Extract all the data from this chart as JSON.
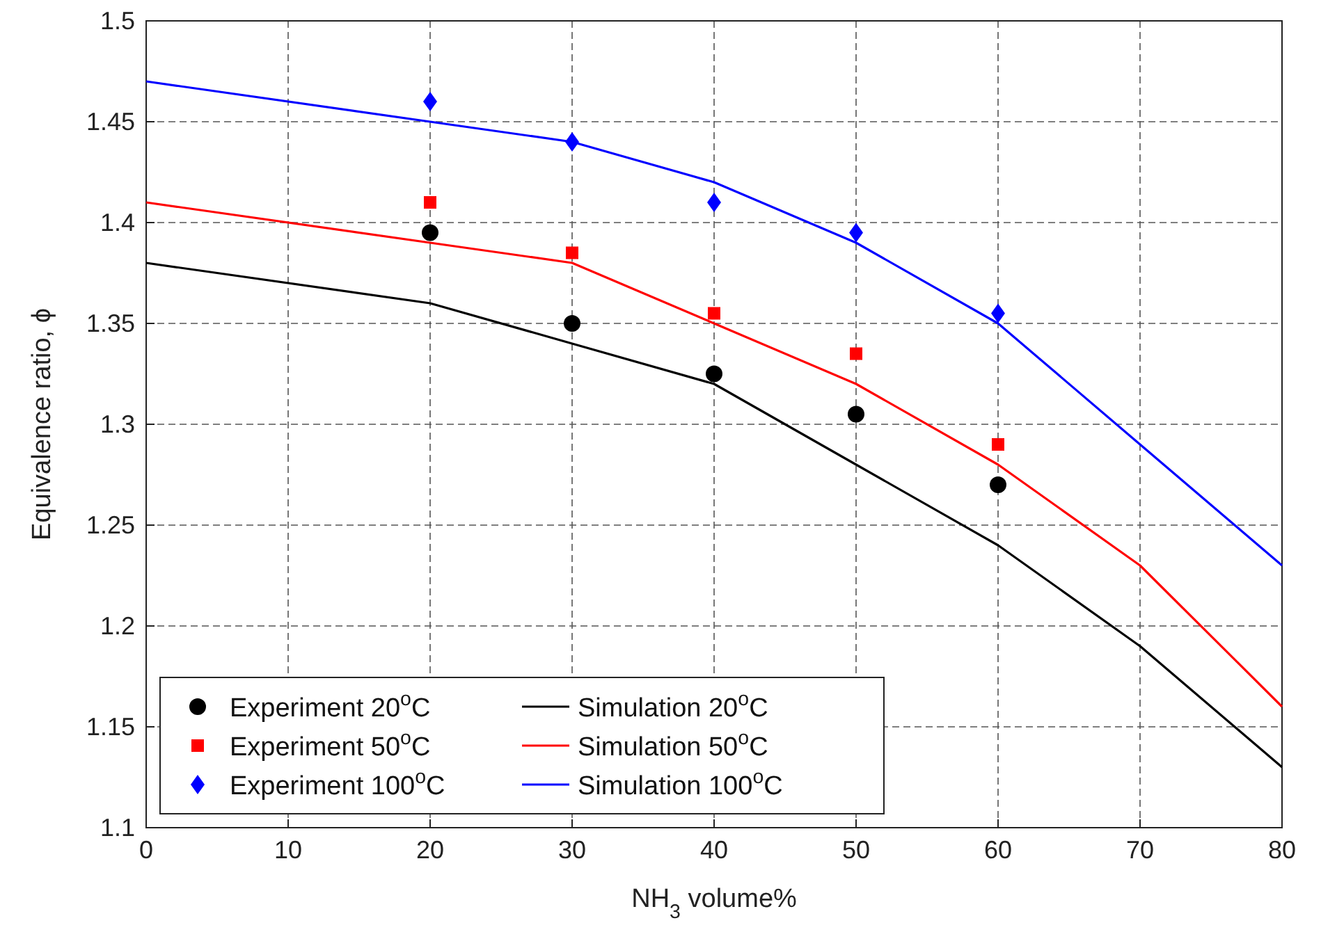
{
  "chart_data": {
    "type": "line",
    "xlabel": "NH$_{3}$ volume%",
    "ylabel": "Equivalence ratio, ϕ",
    "xlim": [
      0,
      80
    ],
    "ylim": [
      1.1,
      1.5
    ],
    "xticks": [
      0,
      10,
      20,
      30,
      40,
      50,
      60,
      70,
      80
    ],
    "yticks": [
      1.1,
      1.15,
      1.2,
      1.25,
      1.3,
      1.35,
      1.4,
      1.45,
      1.5
    ],
    "grid": true,
    "legend": "bottom left",
    "series": [
      {
        "name": "Experiment 20$^{o}$C",
        "type": "scatter",
        "marker": "circle",
        "color": "#000000",
        "x": [
          20,
          30,
          40,
          50,
          60
        ],
        "values": [
          1.395,
          1.35,
          1.325,
          1.305,
          1.27
        ]
      },
      {
        "name": "Experiment 50$^{o}$C",
        "type": "scatter",
        "marker": "square",
        "color": "#ff0000",
        "x": [
          20,
          30,
          40,
          50,
          60
        ],
        "values": [
          1.41,
          1.385,
          1.355,
          1.335,
          1.29
        ]
      },
      {
        "name": "Experiment 100$^{o}$C",
        "type": "scatter",
        "marker": "diamond",
        "color": "#0000ff",
        "x": [
          20,
          30,
          40,
          50,
          60
        ],
        "values": [
          1.46,
          1.44,
          1.41,
          1.395,
          1.355
        ]
      },
      {
        "name": "Simulation 20$^{o}$C",
        "color": "#000000",
        "x": [
          0,
          20,
          30,
          40,
          50,
          60,
          70,
          80
        ],
        "values": [
          1.38,
          1.36,
          1.34,
          1.32,
          1.28,
          1.24,
          1.19,
          1.13
        ]
      },
      {
        "name": "Simulation 50$^{o}$C",
        "color": "#ff0000",
        "x": [
          0,
          20,
          30,
          40,
          50,
          60,
          70,
          80
        ],
        "values": [
          1.41,
          1.39,
          1.38,
          1.35,
          1.32,
          1.28,
          1.23,
          1.16
        ]
      },
      {
        "name": "Simulation 100$^{o}$C",
        "color": "#0000ff",
        "x": [
          0,
          20,
          30,
          40,
          50,
          60,
          70,
          80
        ],
        "values": [
          1.47,
          1.45,
          1.44,
          1.42,
          1.39,
          1.35,
          1.29,
          1.23
        ]
      }
    ]
  }
}
